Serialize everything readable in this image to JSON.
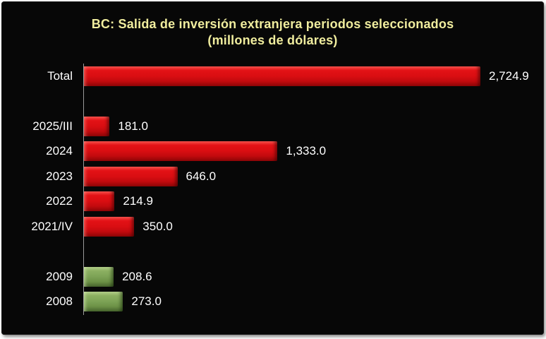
{
  "chart_data": {
    "type": "bar",
    "orientation": "horizontal",
    "title": "BC: Salida de inversión extranjera periodos seleccionados (millones de dólares)",
    "title_line1": "BC: Salida de inversión extranjera periodos seleccionados",
    "title_line2": "(millones de dólares)",
    "categories": [
      "Total",
      "2025/III",
      "2024",
      "2023",
      "2022",
      "2021/IV",
      "2009",
      "2008"
    ],
    "values": [
      2724.9,
      181.0,
      1333.0,
      646.0,
      214.9,
      350.0,
      208.6,
      273.0
    ],
    "value_labels": [
      "2,724.9",
      "181.0",
      "1,333.0",
      "646.0",
      "214.9",
      "350.0",
      "208.6",
      "273.0"
    ],
    "xlim": [
      0,
      2724.9
    ],
    "grid": false,
    "legend": false,
    "value_axis_visible": false,
    "rows": [
      {
        "label": "Total",
        "value": 2724.9,
        "display": "2,724.9",
        "color": "red",
        "spacer": false
      },
      {
        "label": "",
        "value": null,
        "display": "",
        "color": "",
        "spacer": true
      },
      {
        "label": "2025/III",
        "value": 181.0,
        "display": "181.0",
        "color": "red",
        "spacer": false
      },
      {
        "label": "2024",
        "value": 1333.0,
        "display": "1,333.0",
        "color": "red",
        "spacer": false
      },
      {
        "label": "2023",
        "value": 646.0,
        "display": "646.0",
        "color": "red",
        "spacer": false
      },
      {
        "label": "2022",
        "value": 214.9,
        "display": "214.9",
        "color": "red",
        "spacer": false
      },
      {
        "label": "2021/IV",
        "value": 350.0,
        "display": "350.0",
        "color": "red",
        "spacer": false
      },
      {
        "label": "",
        "value": null,
        "display": "",
        "color": "",
        "spacer": true
      },
      {
        "label": "2009",
        "value": 208.6,
        "display": "208.6",
        "color": "green",
        "spacer": false
      },
      {
        "label": "2008",
        "value": 273.0,
        "display": "273.0",
        "color": "green",
        "spacer": false
      }
    ],
    "colors": {
      "red_bar": "#DA0E12",
      "green_bar": "#7DA356",
      "title_text": "#F0ED9E",
      "label_text": "#FFFFFF",
      "panel_background": "#070707",
      "outer_border": "#FFFFFF",
      "axis_line": "#9A9A9A"
    }
  }
}
